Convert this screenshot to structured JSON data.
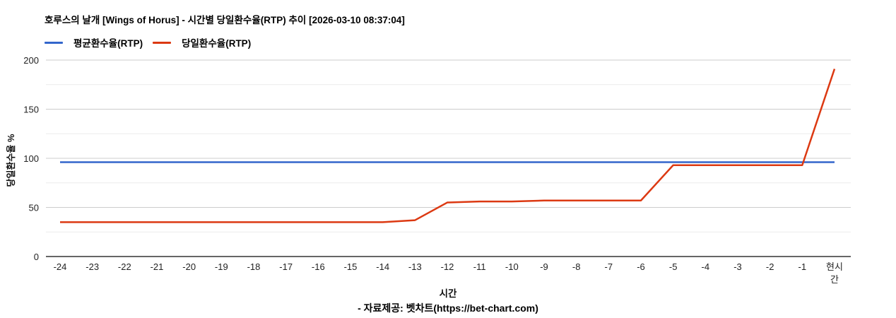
{
  "header": {
    "title": "호루스의 날개 [Wings of Horus] - 시간별 당일환수율(RTP) 추이 [2026-03-10 08:37:04]"
  },
  "legend": {
    "items": [
      {
        "id": "avg-rtp",
        "label": "평균환수율(RTP)",
        "color": "#3366cc"
      },
      {
        "id": "daily-rtp",
        "label": "당일환수율(RTP)",
        "color": "#dc3912"
      }
    ]
  },
  "footer": {
    "credit": "- 자료제공: 벳차트(https://bet-chart.com)"
  },
  "chart_data": {
    "type": "line",
    "title": "호루스의 날개 [Wings of Horus] - 시간별 당일환수율(RTP) 추이 [2026-03-10 08:37:04]",
    "xlabel": "시간",
    "ylabel": "당일환수율 %",
    "ylim": [
      0,
      200
    ],
    "yticks": [
      0,
      50,
      100,
      150,
      200
    ],
    "minor_gridlines": [
      25,
      75,
      125,
      175
    ],
    "grid": {
      "major_color": "#cccccc",
      "minor_color": "#ebebeb",
      "baseline_color": "#333333"
    },
    "legend_position": "top",
    "categories": [
      "-24",
      "-23",
      "-22",
      "-21",
      "-20",
      "-19",
      "-18",
      "-17",
      "-16",
      "-15",
      "-14",
      "-13",
      "-12",
      "-11",
      "-10",
      "-9",
      "-8",
      "-7",
      "-6",
      "-5",
      "-4",
      "-3",
      "-2",
      "-1",
      "현시간"
    ],
    "series": [
      {
        "id": "avg-rtp",
        "name": "평균환수율(RTP)",
        "color": "#3366cc",
        "values": [
          96,
          96,
          96,
          96,
          96,
          96,
          96,
          96,
          96,
          96,
          96,
          96,
          96,
          96,
          96,
          96,
          96,
          96,
          96,
          96,
          96,
          96,
          96,
          96,
          96
        ]
      },
      {
        "id": "daily-rtp",
        "name": "당일환수율(RTP)",
        "color": "#dc3912",
        "values": [
          35,
          35,
          35,
          35,
          35,
          35,
          35,
          35,
          35,
          35,
          35,
          37,
          55,
          56,
          56,
          57,
          57,
          57,
          57,
          93,
          93,
          93,
          93,
          93,
          191
        ]
      }
    ]
  }
}
